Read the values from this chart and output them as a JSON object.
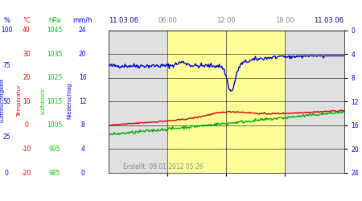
{
  "title_left": "11.03.06",
  "title_right": "11.03.06",
  "xlabel_times": [
    "06:00",
    "12:00",
    "18:00"
  ],
  "col_units": [
    "%",
    "°C",
    "hPa",
    "mm/h"
  ],
  "col_colors": [
    "#0000ff",
    "#ff0000",
    "#00cc00",
    "#0000ff"
  ],
  "tick_left_blue": [
    100,
    75,
    50,
    25,
    0
  ],
  "tick_left_red": [
    40,
    30,
    20,
    10,
    0,
    -10,
    -20
  ],
  "tick_left_green": [
    1045,
    1035,
    1025,
    1015,
    1005,
    995,
    985
  ],
  "tick_right": [
    24,
    20,
    16,
    12,
    8,
    4,
    0
  ],
  "background_main": "#e0e0e0",
  "background_yellow": "#ffff99",
  "footer": "Erstellt: 09.01.2012 05:26",
  "blue_line_color": "#0000cc",
  "red_line_color": "#dd0000",
  "green_line_color": "#00aa00",
  "vertical_label_blue": "Luftfeuchtigkeit",
  "vertical_label_red": "Temperatur",
  "vertical_label_green": "Luftdruck",
  "vertical_label_blue2": "Niederschlag"
}
